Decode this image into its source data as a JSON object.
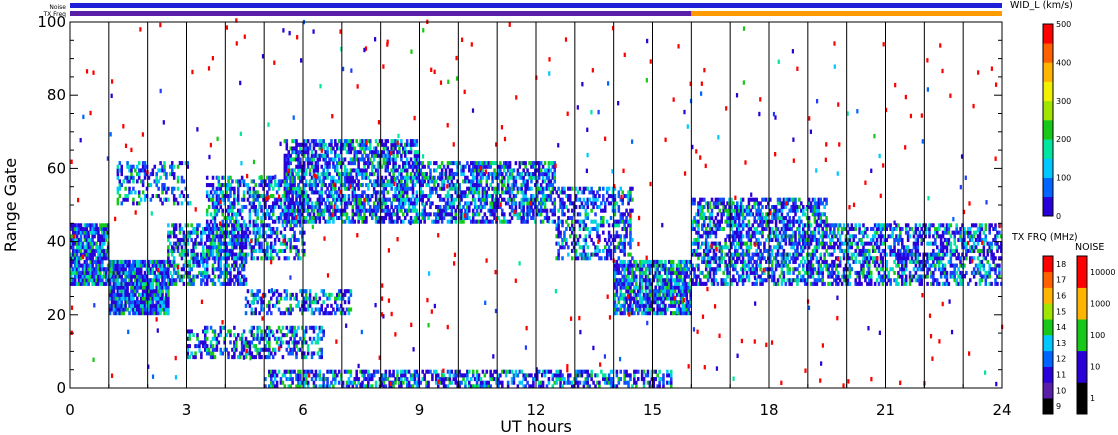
{
  "chart_data": {
    "type": "heatmap",
    "title": "",
    "xlabel": "UT hours",
    "ylabel": "Range Gate",
    "xlim": [
      0,
      24
    ],
    "ylim": [
      0,
      100
    ],
    "x_ticks": [
      "0",
      "3",
      "6",
      "9",
      "12",
      "15",
      "18",
      "21",
      "24"
    ],
    "y_ticks": [
      "0",
      "20",
      "40",
      "60",
      "80",
      "100"
    ],
    "strip_labels": {
      "noise": "Noise",
      "txfreq": "TX Freq"
    },
    "noise_strip_color": "#1f1fd8",
    "txfreq_strip": [
      {
        "from": 0,
        "to": 16,
        "color": "#5a1fa8"
      },
      {
        "from": 16,
        "to": 24,
        "color": "#ff9a00"
      }
    ],
    "beam_boundaries_ut": [
      1,
      2,
      3,
      4,
      5,
      6,
      7,
      8,
      9,
      10,
      11,
      12,
      13,
      14,
      15,
      16,
      17,
      18,
      19,
      20,
      21,
      22,
      23
    ],
    "scatter_regions": [
      {
        "t0": 0.0,
        "t1": 1.0,
        "g0": 28,
        "g1": 45,
        "density": 0.85
      },
      {
        "t0": 1.0,
        "t1": 2.5,
        "g0": 20,
        "g1": 35,
        "density": 0.9
      },
      {
        "t0": 1.2,
        "t1": 3.0,
        "g0": 50,
        "g1": 62,
        "density": 0.35
      },
      {
        "t0": 2.5,
        "t1": 4.5,
        "g0": 28,
        "g1": 45,
        "density": 0.6
      },
      {
        "t0": 3.5,
        "t1": 6.0,
        "g0": 35,
        "g1": 58,
        "density": 0.5
      },
      {
        "t0": 4.5,
        "t1": 7.2,
        "g0": 20,
        "g1": 27,
        "density": 0.4
      },
      {
        "t0": 3.0,
        "t1": 6.5,
        "g0": 8,
        "g1": 17,
        "density": 0.45
      },
      {
        "t0": 5.5,
        "t1": 9.0,
        "g0": 45,
        "g1": 68,
        "density": 0.65
      },
      {
        "t0": 9.0,
        "t1": 12.5,
        "g0": 45,
        "g1": 62,
        "density": 0.6
      },
      {
        "t0": 12.5,
        "t1": 14.5,
        "g0": 35,
        "g1": 55,
        "density": 0.45
      },
      {
        "t0": 14.0,
        "t1": 16.0,
        "g0": 20,
        "g1": 35,
        "density": 0.8
      },
      {
        "t0": 16.0,
        "t1": 19.5,
        "g0": 28,
        "g1": 52,
        "density": 0.6
      },
      {
        "t0": 19.5,
        "t1": 24.0,
        "g0": 28,
        "g1": 45,
        "density": 0.55
      },
      {
        "t0": 5.0,
        "t1": 15.5,
        "g0": 0,
        "g1": 5,
        "density": 0.55
      }
    ],
    "colorbars": [
      {
        "title": "WID_L (km/s)",
        "ticks": [
          "0",
          "100",
          "200",
          "300",
          "400",
          "500"
        ],
        "range": [
          0,
          500
        ],
        "colors": [
          "#2a00d8",
          "#0064ff",
          "#00c8ff",
          "#00e6a0",
          "#18c818",
          "#a0e600",
          "#f0f000",
          "#ffb400",
          "#ff6000",
          "#ff0000"
        ]
      },
      {
        "title": "TX FRQ (MHz)",
        "ticks": [
          "9",
          "10",
          "11",
          "12",
          "13",
          "14",
          "15",
          "16",
          "17",
          "18"
        ],
        "colors": [
          "#000000",
          "#5a1fa8",
          "#2a00d8",
          "#0064ff",
          "#00c8ff",
          "#18c818",
          "#a0e600",
          "#ffb400",
          "#ff6000",
          "#ff0000"
        ]
      },
      {
        "title": "NOISE",
        "ticks": [
          "1",
          "10",
          "100",
          "1000",
          "10000"
        ],
        "colors": [
          "#000000",
          "#2a00d8",
          "#18c818",
          "#ffb400",
          "#ff0000"
        ]
      }
    ]
  }
}
